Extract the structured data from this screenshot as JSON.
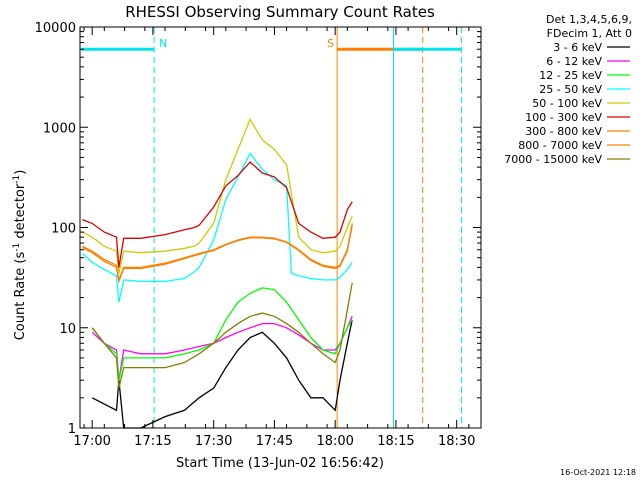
{
  "chart_data": {
    "type": "line",
    "title": "RHESSI Observing Summary Count Rates",
    "xlabel": "Start Time (13-Jun-02 16:56:42)",
    "ylabel_main": "Count Rate (s",
    "ylabel_sup1": "-1",
    "ylabel_mid": " detector",
    "ylabel_sup2": "-1",
    "ylabel_end": ")",
    "yscale": "log",
    "xlim": [
      16.95,
      18.6
    ],
    "ylim": [
      1,
      10000
    ],
    "x_ticks": [
      {
        "v": 17.0,
        "label": "17:00"
      },
      {
        "v": 17.25,
        "label": "17:15"
      },
      {
        "v": 17.5,
        "label": "17:30"
      },
      {
        "v": 17.75,
        "label": "17:45"
      },
      {
        "v": 18.0,
        "label": "18:00"
      },
      {
        "v": 18.25,
        "label": "18:15"
      },
      {
        "v": 18.5,
        "label": "18:30"
      }
    ],
    "y_ticks": [
      {
        "v": 1,
        "label": "1"
      },
      {
        "v": 10,
        "label": "10"
      },
      {
        "v": 100,
        "label": "100"
      },
      {
        "v": 1000,
        "label": "1000"
      },
      {
        "v": 10000,
        "label": "10000"
      }
    ],
    "legend": {
      "header1": "Det 1,3,4,5,6,9,",
      "header2": "FDecim 1, Att 0",
      "placement": "right"
    },
    "series": [
      {
        "name": "3 - 6 keV",
        "color": "#000000",
        "x": [
          17.0,
          17.1,
          17.11,
          17.13,
          17.2,
          17.3,
          17.38,
          17.44,
          17.5,
          17.55,
          17.6,
          17.65,
          17.7,
          17.75,
          17.8,
          17.85,
          17.9,
          17.95,
          18.0,
          18.02,
          18.05,
          18.07
        ],
        "y": [
          2,
          1.5,
          3,
          1,
          1,
          1.3,
          1.5,
          2,
          2.5,
          4,
          6,
          8,
          9,
          7,
          5,
          3,
          2,
          2,
          1.5,
          3,
          7,
          12
        ]
      },
      {
        "name": "6 - 12 keV",
        "color": "#ff00ff",
        "x": [
          17.0,
          17.05,
          17.1,
          17.11,
          17.13,
          17.2,
          17.3,
          17.38,
          17.44,
          17.5,
          17.55,
          17.6,
          17.65,
          17.7,
          17.75,
          17.8,
          17.85,
          17.9,
          17.95,
          18.0,
          18.02,
          18.05,
          18.07
        ],
        "y": [
          9,
          7,
          6,
          3,
          6,
          5.5,
          5.5,
          6,
          6.5,
          7,
          8,
          9,
          10,
          11,
          11,
          10,
          8.5,
          7,
          6,
          6,
          7,
          10,
          13
        ]
      },
      {
        "name": "12 - 25 keV",
        "color": "#00ff00",
        "x": [
          17.0,
          17.05,
          17.1,
          17.11,
          17.13,
          17.2,
          17.3,
          17.38,
          17.44,
          17.5,
          17.55,
          17.6,
          17.65,
          17.7,
          17.75,
          17.8,
          17.85,
          17.9,
          17.95,
          18.0,
          18.02,
          18.05,
          18.07
        ],
        "y": [
          10,
          7,
          5.5,
          3,
          5,
          5,
          5,
          5.5,
          6,
          7,
          12,
          18,
          22,
          25,
          24,
          18,
          12,
          8,
          6,
          5.5,
          7,
          10,
          12
        ]
      },
      {
        "name": "25 - 50 keV",
        "color": "#00ffff",
        "x": [
          16.96,
          16.98,
          17.0,
          17.05,
          17.1,
          17.11,
          17.13,
          17.2,
          17.3,
          17.38,
          17.42,
          17.44,
          17.5,
          17.55,
          17.6,
          17.65,
          17.7,
          17.75,
          17.8,
          17.82,
          17.85,
          17.9,
          17.95,
          18.0,
          18.02,
          18.05,
          18.07
        ],
        "y": [
          55,
          50,
          45,
          38,
          33,
          18,
          30,
          29,
          29,
          31,
          36,
          40,
          75,
          190,
          320,
          550,
          380,
          300,
          260,
          35,
          33,
          31,
          30,
          30,
          32,
          38,
          45
        ]
      },
      {
        "name": "50 - 100 keV",
        "color": "#cccc00",
        "x": [
          16.96,
          17.0,
          17.05,
          17.1,
          17.11,
          17.13,
          17.2,
          17.3,
          17.38,
          17.42,
          17.44,
          17.5,
          17.55,
          17.6,
          17.65,
          17.7,
          17.75,
          17.8,
          17.85,
          17.9,
          17.95,
          18.0,
          18.02,
          18.05,
          18.07
        ],
        "y": [
          90,
          80,
          65,
          58,
          35,
          58,
          56,
          58,
          62,
          65,
          70,
          110,
          300,
          600,
          1200,
          750,
          600,
          420,
          80,
          60,
          56,
          58,
          65,
          100,
          130
        ]
      },
      {
        "name": "100 - 300 keV",
        "color": "#dd0000",
        "x": [
          16.96,
          17.0,
          17.05,
          17.1,
          17.11,
          17.13,
          17.2,
          17.3,
          17.38,
          17.42,
          17.44,
          17.5,
          17.55,
          17.6,
          17.65,
          17.7,
          17.75,
          17.8,
          17.85,
          17.9,
          17.95,
          18.0,
          18.02,
          18.05,
          18.07
        ],
        "y": [
          120,
          110,
          90,
          80,
          40,
          78,
          78,
          85,
          95,
          100,
          105,
          160,
          260,
          330,
          450,
          350,
          320,
          250,
          110,
          90,
          78,
          80,
          90,
          150,
          180
        ]
      },
      {
        "name": "300 - 800 keV",
        "color": "#ff8000",
        "x": [
          16.96,
          17.0,
          17.05,
          17.1,
          17.11,
          17.13,
          17.2,
          17.3,
          17.38,
          17.44,
          17.5,
          17.55,
          17.6,
          17.65,
          17.7,
          17.75,
          17.8,
          17.85,
          17.9,
          17.95,
          18.0,
          18.02,
          18.05,
          18.07
        ],
        "y": [
          65,
          58,
          48,
          42,
          30,
          40,
          40,
          44,
          50,
          55,
          60,
          68,
          75,
          80,
          80,
          78,
          72,
          60,
          48,
          42,
          40,
          42,
          60,
          110
        ]
      },
      {
        "name": "800 - 7000 keV",
        "color": "#ff8000",
        "x": [
          16.96,
          17.0,
          17.05,
          17.1,
          17.11,
          17.13,
          17.2,
          17.3,
          17.38,
          17.44,
          17.5,
          17.55,
          17.6,
          17.65,
          17.7,
          17.75,
          17.8,
          17.85,
          17.9,
          17.95,
          18.0,
          18.02,
          18.05,
          18.07
        ],
        "y": [
          63,
          56,
          46,
          40,
          29,
          39,
          39,
          43,
          49,
          54,
          59,
          67,
          74,
          79,
          79,
          77,
          71,
          59,
          47,
          41,
          39,
          41,
          58,
          105
        ]
      },
      {
        "name": "7000 - 15000 keV",
        "color": "#808000",
        "x": [
          17.0,
          17.05,
          17.1,
          17.11,
          17.13,
          17.2,
          17.3,
          17.38,
          17.44,
          17.5,
          17.55,
          17.6,
          17.65,
          17.7,
          17.75,
          17.8,
          17.85,
          17.9,
          17.95,
          18.0,
          18.02,
          18.05,
          18.07
        ],
        "y": [
          10,
          7,
          5,
          2.5,
          4,
          4,
          4,
          4.5,
          5.5,
          7,
          9,
          11,
          13,
          14,
          13,
          11,
          9,
          7,
          5.5,
          4.5,
          6,
          15,
          28
        ]
      }
    ],
    "markers": [
      {
        "kind": "N",
        "label": "N",
        "color": "#00e5ee",
        "x_start": 16.955,
        "x_end": 17.255,
        "dash_at": 17.255,
        "solid_at": null
      },
      {
        "kind": "S",
        "label": "S",
        "color": "#ff8000",
        "x_start": 18.008,
        "x_end": 18.36,
        "dash_at": 18.36,
        "solid_at": 18.008
      },
      {
        "kind": "N2",
        "label": "",
        "color": "#00e5ee",
        "x_start": 18.24,
        "x_end": 18.52,
        "dash_at": 18.52,
        "solid_at": 18.24
      }
    ],
    "marker_level": 6000,
    "grid": false
  },
  "footer": {
    "timestamp": "16-Oct-2021 12:18"
  }
}
